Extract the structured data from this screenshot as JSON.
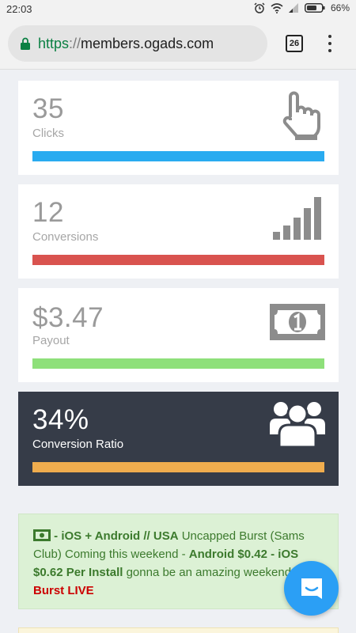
{
  "status_bar": {
    "time": "22:03",
    "battery": "66%"
  },
  "browser": {
    "url_scheme": "https",
    "url_separator": "://",
    "url_host": "members.ogads.com",
    "tab_count": "26"
  },
  "stats": [
    {
      "value": "35",
      "label": "Clicks",
      "bar_color": "#29abf0",
      "icon": "hand-pointer-icon"
    },
    {
      "value": "12",
      "label": "Conversions",
      "bar_color": "#d9534f",
      "icon": "signal-bars-icon"
    },
    {
      "value": "$3.47",
      "label": "Payout",
      "bar_color": "#8ee07a",
      "icon": "money-bill-icon"
    },
    {
      "value": "34%",
      "label": "Conversion Ratio",
      "bar_color": "#f0ad4e",
      "icon": "users-group-icon"
    }
  ],
  "announcement": {
    "line1_bold": "- iOS + Android // USA",
    "line1_text": " Uncapped Burst (Sams",
    "line2": "Club) Coming this weekend - ",
    "line2_bold": "Android $0.42 - iOS",
    "line3_bold": "$0.62 Per Install",
    "line3_text": " gonna be an amazing weekend",
    "line4_red": "Burst LIVE"
  },
  "colors": {
    "dark_card": "#363c48",
    "announce_bg": "#dcf1d5",
    "chat_button": "#2b9ff5"
  }
}
